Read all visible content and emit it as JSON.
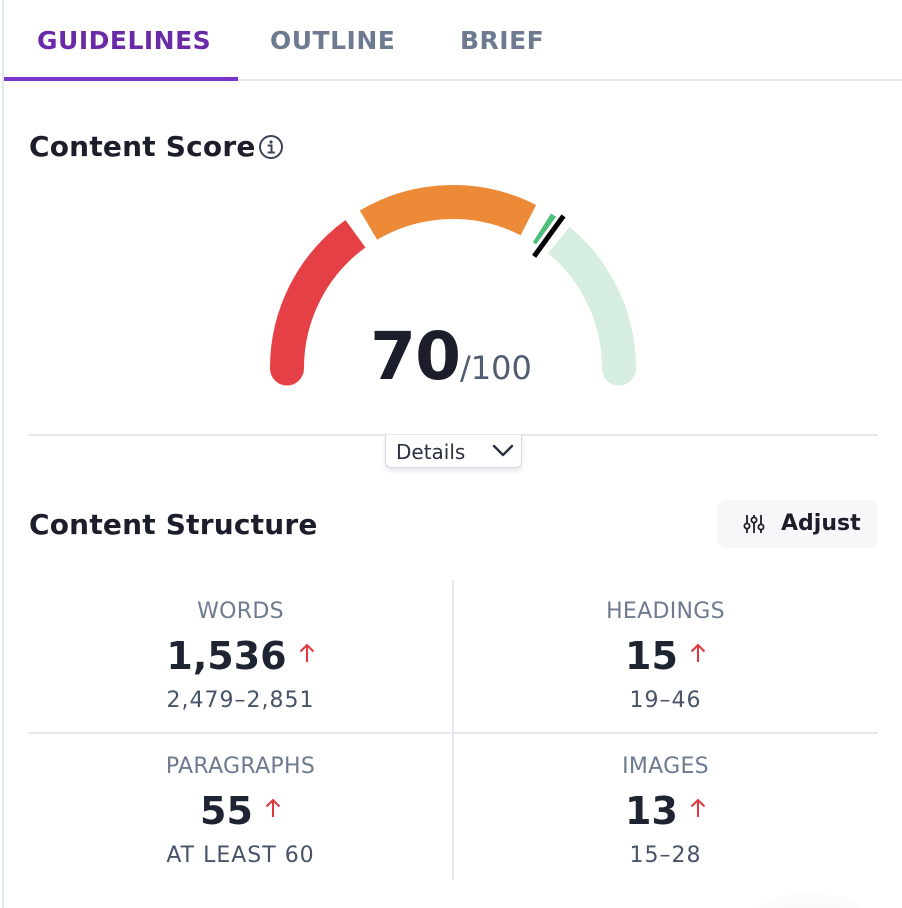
{
  "tabs": [
    {
      "label": "GUIDELINES",
      "active": true
    },
    {
      "label": "OUTLINE",
      "active": false
    },
    {
      "label": "BRIEF",
      "active": false
    }
  ],
  "content_score": {
    "title": "Content Score",
    "info_icon": "info-circle-icon",
    "score": "70",
    "max": "/100",
    "gauge": {
      "segments": [
        {
          "name": "poor",
          "from": 0,
          "to": 30,
          "color": "#e54045"
        },
        {
          "name": "average",
          "from": 33,
          "to": 65,
          "color": "#ec8a38"
        },
        {
          "name": "good-filled",
          "from": 68,
          "to": 70,
          "color": "#4bbf7a"
        },
        {
          "name": "good-remaining",
          "from": 72,
          "to": 100,
          "color": "#d5eee0"
        }
      ],
      "needle_value": 70,
      "needle_color": "#000000"
    },
    "details_label": "Details",
    "details_icon": "chevron-down-icon"
  },
  "content_structure": {
    "title": "Content Structure",
    "adjust_label": "Adjust",
    "adjust_icon": "sliders-icon",
    "metrics": [
      {
        "label": "WORDS",
        "value": "1,536",
        "trend": "up",
        "range": "2,479–2,851"
      },
      {
        "label": "HEADINGS",
        "value": "15",
        "trend": "up",
        "range": "19–46"
      },
      {
        "label": "PARAGRAPHS",
        "value": "55",
        "trend": "up",
        "range": "AT LEAST 60"
      },
      {
        "label": "IMAGES",
        "value": "13",
        "trend": "up",
        "range": "15–28"
      }
    ],
    "trend_color": "#e0383e"
  }
}
